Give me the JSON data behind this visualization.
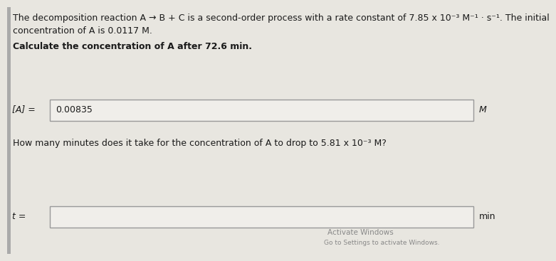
{
  "bg_color": "#e8e6e0",
  "text_color": "#1a1a1a",
  "line1": "The decomposition reaction A → B + C is a second-order process with a rate constant of 7.85 x 10⁻³ M⁻¹ · s⁻¹. The initial",
  "line2": "concentration of A is 0.0117 M.",
  "line3": "Calculate the concentration of A after 72.6 min.",
  "label1": "[A] =",
  "answer1": "0.00835",
  "unit1": "M",
  "line4": "How many minutes does it take for the concentration of A to drop to 5.81 x 10⁻³ M?",
  "label2": "t =",
  "answer2": "",
  "unit2": "min",
  "watermark1": "Activate Windows",
  "watermark2": "Go to Settings to activate Windows.",
  "box1_color": "#f0eeea",
  "box2_color": "#f0eeea",
  "border_color": "#999999",
  "left_bar_color": "#8a8a8a",
  "left_bar_width": 0.008
}
